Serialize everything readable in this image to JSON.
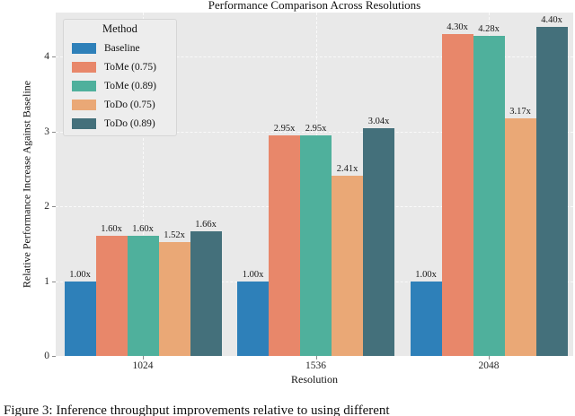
{
  "figure": {
    "caption_partial": "Figure 3: Inference throughput improvements relative to using different"
  },
  "chart_data": {
    "type": "bar",
    "title": "Performance Comparison Across Resolutions",
    "xlabel": "Resolution",
    "ylabel": "Relative Performance Increase Against Baseline",
    "categories": [
      "1024",
      "1536",
      "2048"
    ],
    "yticks": [
      0,
      1,
      2,
      3,
      4
    ],
    "ylim": [
      0,
      4.58
    ],
    "grid": "dashed light gridlines, horizontal at integers and vertical at category centers",
    "legend_title": "Method",
    "legend_position": "upper left",
    "plot_background": "#e9e9e9",
    "series": [
      {
        "name": "Baseline",
        "color": "#2e80b9",
        "values": [
          1.0,
          1.0,
          1.0
        ],
        "labels": [
          "1.00x",
          "1.00x",
          "1.00x"
        ]
      },
      {
        "name": "ToMe (0.75)",
        "color": "#e8876a",
        "values": [
          1.6,
          2.95,
          4.3
        ],
        "labels": [
          "1.60x",
          "2.95x",
          "4.30x"
        ]
      },
      {
        "name": "ToMe (0.89)",
        "color": "#4fb09c",
        "values": [
          1.6,
          2.95,
          4.28
        ],
        "labels": [
          "1.60x",
          "2.95x",
          "4.28x"
        ]
      },
      {
        "name": "ToDo (0.75)",
        "color": "#eaa876",
        "values": [
          1.52,
          2.41,
          3.17
        ],
        "labels": [
          "1.52x",
          "2.41x",
          "3.17x"
        ]
      },
      {
        "name": "ToDo (0.89)",
        "color": "#44707b",
        "values": [
          1.66,
          3.04,
          4.4
        ],
        "labels": [
          "1.66x",
          "3.04x",
          "4.40x"
        ]
      }
    ]
  }
}
